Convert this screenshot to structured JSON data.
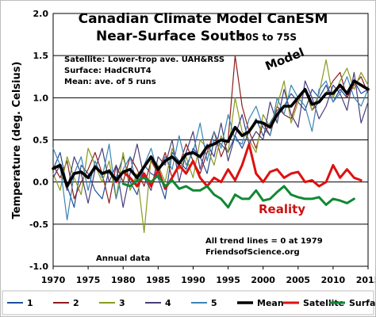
{
  "chart_data": {
    "type": "line",
    "title": "Canadian Climate Model CanESM",
    "subtitle": "Near-Surface South",
    "subtitle_range": "50S to 75S",
    "ylabel": "Temperature (deg. Celsius)",
    "xlabel": "",
    "xlim": [
      1970,
      2015
    ],
    "ylim": [
      -1.0,
      2.0
    ],
    "grid": true,
    "x_ticks": [
      "1970",
      "1975",
      "1980",
      "1985",
      "1990",
      "1995",
      "2000",
      "2005",
      "2010",
      "2015"
    ],
    "y_ticks": [
      "2.0",
      "1.5",
      "1.0",
      "0.5",
      "0.0",
      "-0.5",
      "-1.0"
    ],
    "notes": [
      "Satellite: Lower-trop ave. UAH&RSS",
      "Surface: HadCRUT4",
      "Mean: ave. of 5 runs"
    ],
    "annotations": {
      "model": "Model",
      "reality": "Reality",
      "trend_note_1": "All trend lines = 0 at 1979",
      "trend_note_2": "FriendsofScience.org",
      "annual": "Annual data"
    },
    "legend_position": "bottom",
    "x_start": 1970,
    "series": [
      {
        "name": "1",
        "color": "#1f4e9c",
        "width": 1.2,
        "values": [
          0.15,
          0.35,
          -0.05,
          -0.3,
          0.2,
          0.1,
          -0.1,
          -0.2,
          0.15,
          0.05,
          0.3,
          0.0,
          -0.15,
          0.2,
          0.1,
          0.05,
          -0.2,
          0.35,
          0.25,
          0.15,
          0.4,
          0.3,
          0.1,
          0.5,
          0.45,
          0.35,
          0.55,
          0.4,
          0.6,
          0.75,
          0.55,
          0.7,
          0.85,
          0.9,
          1.05,
          0.95,
          0.85,
          1.1,
          1.0,
          1.15,
          0.95,
          1.1,
          1.0,
          1.2,
          1.05,
          1.1
        ]
      },
      {
        "name": "2",
        "color": "#8e1c1c",
        "width": 1.2,
        "values": [
          0.2,
          0.05,
          0.25,
          -0.2,
          0.0,
          0.15,
          0.35,
          0.1,
          -0.25,
          0.2,
          0.0,
          0.3,
          0.15,
          -0.05,
          0.25,
          0.1,
          0.35,
          0.05,
          0.2,
          0.45,
          0.25,
          0.1,
          0.35,
          0.6,
          0.3,
          0.5,
          1.5,
          0.9,
          0.6,
          0.4,
          0.7,
          0.55,
          0.9,
          0.8,
          0.75,
          1.0,
          1.1,
          0.85,
          0.95,
          1.05,
          1.2,
          1.3,
          1.0,
          1.15,
          1.25,
          1.05
        ]
      },
      {
        "name": "3",
        "color": "#8a9a20",
        "width": 1.2,
        "values": [
          0.1,
          -0.1,
          0.3,
          0.05,
          -0.15,
          0.4,
          0.2,
          0.0,
          0.25,
          -0.2,
          0.35,
          -0.1,
          0.1,
          -0.6,
          0.3,
          0.2,
          0.0,
          0.4,
          0.15,
          0.3,
          0.05,
          0.5,
          0.4,
          0.2,
          0.55,
          0.35,
          1.0,
          0.6,
          0.5,
          0.35,
          0.8,
          0.65,
          0.9,
          1.2,
          0.7,
          0.95,
          1.1,
          0.85,
          1.05,
          1.45,
          1.0,
          1.2,
          1.35,
          1.1,
          1.3,
          1.15
        ]
      },
      {
        "name": "4",
        "color": "#4a3d7a",
        "width": 1.2,
        "values": [
          0.05,
          0.2,
          -0.1,
          0.3,
          0.1,
          -0.25,
          0.15,
          0.4,
          0.0,
          0.2,
          -0.3,
          0.1,
          0.45,
          0.05,
          -0.1,
          0.3,
          0.2,
          0.5,
          0.0,
          0.35,
          0.6,
          0.15,
          0.45,
          0.3,
          0.7,
          0.25,
          0.55,
          0.8,
          0.45,
          0.6,
          0.5,
          0.95,
          0.7,
          1.1,
          0.8,
          0.65,
          1.2,
          1.0,
          0.75,
          0.9,
          1.15,
          1.05,
          0.85,
          1.3,
          0.7,
          0.95
        ]
      },
      {
        "name": "5",
        "color": "#3a85b5",
        "width": 1.2,
        "values": [
          0.4,
          0.2,
          -0.45,
          0.1,
          0.3,
          -0.1,
          0.25,
          0.05,
          0.45,
          -0.2,
          0.15,
          0.3,
          -0.05,
          0.2,
          0.4,
          0.1,
          0.3,
          0.15,
          0.55,
          0.2,
          0.35,
          0.7,
          0.25,
          0.6,
          0.4,
          0.8,
          0.5,
          0.45,
          0.75,
          0.9,
          0.65,
          0.55,
          1.0,
          0.8,
          1.15,
          1.0,
          0.9,
          0.6,
          1.1,
          1.2,
          0.95,
          1.05,
          1.25,
          1.0,
          0.9,
          1.1
        ]
      },
      {
        "name": "Mean",
        "color": "#000000",
        "width": 3.6,
        "values": [
          0.16,
          0.2,
          -0.05,
          0.1,
          0.12,
          0.05,
          0.18,
          0.1,
          0.13,
          0.02,
          0.12,
          0.15,
          0.05,
          0.18,
          0.3,
          0.15,
          0.25,
          0.3,
          0.22,
          0.33,
          0.35,
          0.3,
          0.42,
          0.45,
          0.5,
          0.48,
          0.65,
          0.55,
          0.6,
          0.72,
          0.7,
          0.65,
          0.8,
          0.9,
          0.9,
          1.0,
          1.1,
          0.92,
          0.95,
          1.05,
          1.05,
          1.15,
          1.05,
          1.2,
          1.15,
          1.1
        ]
      },
      {
        "name": "Satellite",
        "color": "#dd1111",
        "width": 3.0,
        "values": [
          null,
          null,
          null,
          null,
          null,
          null,
          null,
          null,
          null,
          0.0,
          0.12,
          0.05,
          -0.05,
          0.1,
          -0.05,
          0.15,
          -0.08,
          0.05,
          0.2,
          0.1,
          0.25,
          0.05,
          -0.05,
          0.05,
          0.0,
          0.15,
          0.02,
          0.2,
          0.45,
          0.1,
          0.0,
          0.12,
          0.15,
          0.05,
          0.1,
          0.12,
          0.0,
          0.02,
          -0.05,
          0.0,
          0.2,
          0.05,
          0.15,
          0.05,
          0.02,
          null
        ]
      },
      {
        "name": "Surface",
        "color": "#118833",
        "width": 3.0,
        "values": [
          null,
          null,
          null,
          null,
          null,
          null,
          null,
          null,
          null,
          null,
          -0.02,
          -0.05,
          0.02,
          0.05,
          0.0,
          0.08,
          -0.05,
          0.02,
          -0.08,
          -0.05,
          -0.1,
          -0.1,
          -0.05,
          -0.15,
          -0.2,
          -0.3,
          -0.15,
          -0.2,
          -0.2,
          -0.1,
          -0.22,
          -0.2,
          -0.12,
          -0.05,
          -0.15,
          -0.18,
          -0.2,
          -0.2,
          -0.18,
          -0.27,
          -0.2,
          -0.22,
          -0.25,
          -0.2,
          null,
          null
        ]
      }
    ]
  }
}
